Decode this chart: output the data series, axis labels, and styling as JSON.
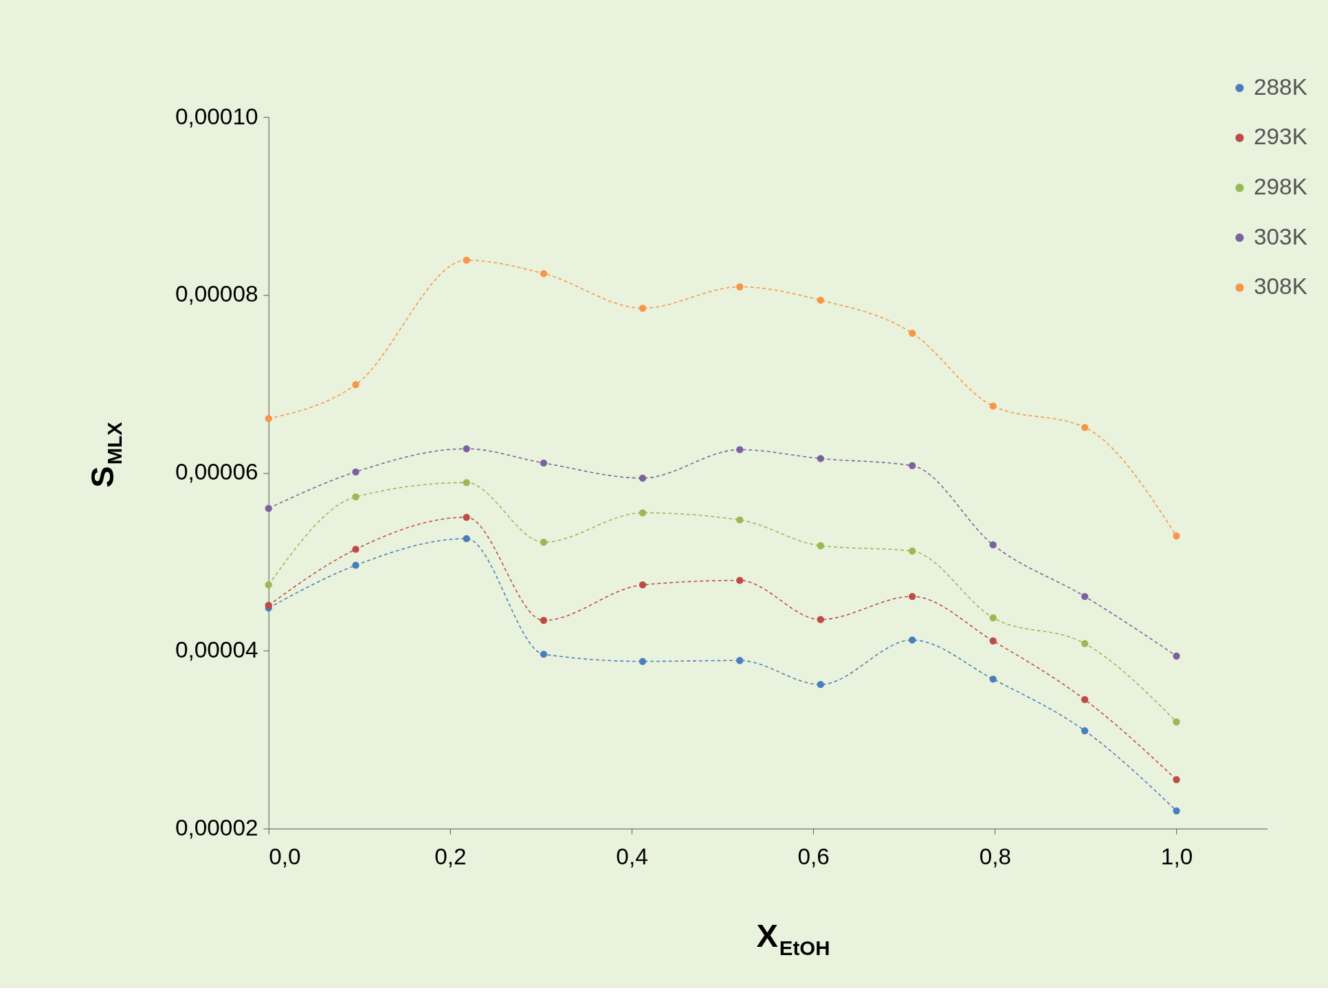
{
  "chart_data": {
    "type": "line",
    "xlabel": "X$_{EtOH}$",
    "ylabel": "S$_{MLX}$",
    "x": [
      0.0,
      0.096,
      0.218,
      0.303,
      0.412,
      0.519,
      0.608,
      0.709,
      0.798,
      0.899,
      1.0
    ],
    "series": [
      {
        "name": "288K",
        "color": "#4a7ebb",
        "values": [
          4.48e-05,
          4.96e-05,
          5.26e-05,
          3.96e-05,
          3.88e-05,
          3.89e-05,
          3.62e-05,
          4.12e-05,
          3.68e-05,
          3.1e-05,
          2.2e-05
        ]
      },
      {
        "name": "293K",
        "color": "#be4b48",
        "values": [
          4.51e-05,
          5.14e-05,
          5.5e-05,
          4.34e-05,
          4.74e-05,
          4.79e-05,
          4.35e-05,
          4.61e-05,
          4.11e-05,
          3.45e-05,
          2.55e-05
        ]
      },
      {
        "name": "298K",
        "color": "#98b954",
        "values": [
          4.74e-05,
          5.73e-05,
          5.89e-05,
          5.22e-05,
          5.55e-05,
          5.47e-05,
          5.18e-05,
          5.12e-05,
          4.37e-05,
          4.08e-05,
          3.2e-05
        ]
      },
      {
        "name": "303K",
        "color": "#7d60a0",
        "values": [
          5.6e-05,
          6.01e-05,
          6.27e-05,
          6.11e-05,
          5.94e-05,
          6.26e-05,
          6.16e-05,
          6.08e-05,
          5.19e-05,
          4.61e-05,
          3.94e-05
        ]
      },
      {
        "name": "308K",
        "color": "#f79646",
        "values": [
          6.61e-05,
          6.99e-05,
          8.39e-05,
          8.24e-05,
          7.85e-05,
          8.09e-05,
          7.94e-05,
          7.57e-05,
          6.75e-05,
          6.51e-05,
          5.29e-05
        ]
      }
    ],
    "xlim": [
      0,
      1.1
    ],
    "xticks": [
      {
        "value": 0,
        "label": "0,0"
      },
      {
        "value": 0.2,
        "label": "0,2"
      },
      {
        "value": 0.4,
        "label": "0,4"
      },
      {
        "value": 0.6,
        "label": "0,6"
      },
      {
        "value": 0.8,
        "label": "0,8"
      },
      {
        "value": 1.0,
        "label": "1,0"
      }
    ],
    "ylim": [
      2e-05,
      0.0001
    ],
    "yticks": [
      {
        "value": 2e-05,
        "label": "0,00002"
      },
      {
        "value": 4e-05,
        "label": "0,00004"
      },
      {
        "value": 6e-05,
        "label": "0,00006"
      },
      {
        "value": 8e-05,
        "label": "0,00008"
      },
      {
        "value": 0.0001,
        "label": "0,00010"
      }
    ],
    "grid": false,
    "legend": "top right",
    "marker": "circle",
    "line_style": "dashed"
  }
}
